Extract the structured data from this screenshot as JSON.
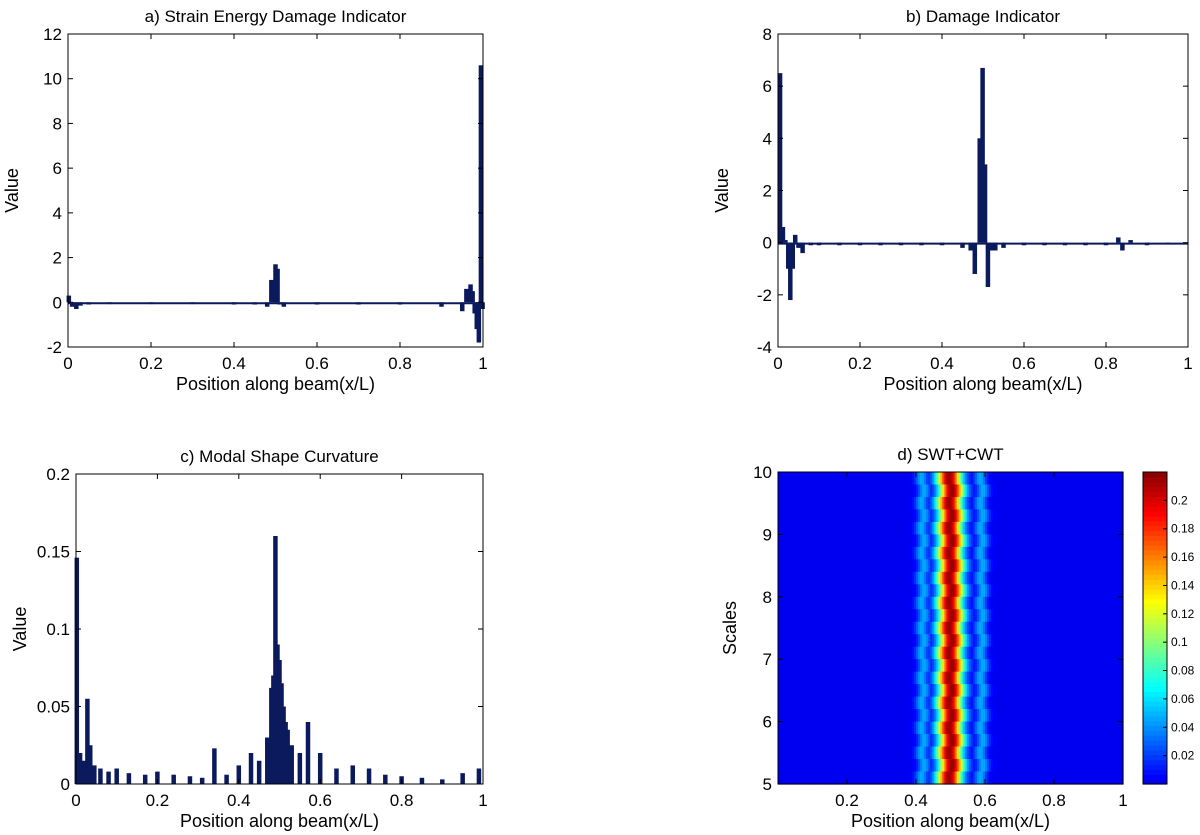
{
  "chart_data": [
    {
      "id": "a",
      "type": "bar",
      "title": "a)   Strain Energy Damage Indicator",
      "xlabel": "Position along beam(x/L)",
      "ylabel": "Value",
      "xlim": [
        0,
        1
      ],
      "ylim": [
        -2,
        12
      ],
      "xticks": [
        0,
        0.2,
        0.4,
        0.6,
        0.8,
        1
      ],
      "xtick_labels": [
        "0",
        "0.2",
        "0.4",
        "0.6",
        "0.8",
        "1"
      ],
      "yticks": [
        -2,
        0,
        2,
        4,
        6,
        8,
        10,
        12
      ],
      "ytick_labels": [
        "-2",
        "0",
        "2",
        "4",
        "6",
        "8",
        "10",
        "12"
      ],
      "bar_color": "#0b1a5c",
      "x": [
        0.002,
        0.01,
        0.02,
        0.03,
        0.05,
        0.1,
        0.2,
        0.3,
        0.4,
        0.45,
        0.48,
        0.49,
        0.5,
        0.505,
        0.51,
        0.52,
        0.6,
        0.7,
        0.8,
        0.9,
        0.95,
        0.96,
        0.97,
        0.975,
        0.98,
        0.985,
        0.99,
        0.995,
        0.999
      ],
      "values": [
        0.3,
        -0.2,
        -0.3,
        -0.15,
        -0.1,
        -0.08,
        -0.08,
        -0.08,
        -0.1,
        -0.1,
        -0.2,
        1.0,
        1.7,
        1.5,
        -0.1,
        -0.2,
        -0.1,
        -0.1,
        -0.1,
        -0.2,
        -0.4,
        0.6,
        0.8,
        0.5,
        -0.5,
        -1.2,
        -1.8,
        10.6,
        -0.3
      ]
    },
    {
      "id": "b",
      "type": "bar",
      "title": "b)   Damage Indicator",
      "xlabel": "Position along beam(x/L)",
      "ylabel": "Value",
      "xlim": [
        0,
        1
      ],
      "ylim": [
        -4,
        8
      ],
      "xticks": [
        0,
        0.2,
        0.4,
        0.6,
        0.8,
        1
      ],
      "xtick_labels": [
        "0",
        "0.2",
        "0.4",
        "0.6",
        "0.8",
        "1"
      ],
      "yticks": [
        -4,
        -2,
        0,
        2,
        4,
        6,
        8
      ],
      "ytick_labels": [
        "-4",
        "-2",
        "0",
        "2",
        "4",
        "6",
        "8"
      ],
      "bar_color": "#0b1a5c",
      "x": [
        0.005,
        0.012,
        0.018,
        0.025,
        0.03,
        0.036,
        0.042,
        0.05,
        0.06,
        0.08,
        0.1,
        0.15,
        0.2,
        0.25,
        0.3,
        0.35,
        0.4,
        0.45,
        0.47,
        0.48,
        0.492,
        0.499,
        0.505,
        0.512,
        0.52,
        0.53,
        0.55,
        0.6,
        0.65,
        0.7,
        0.75,
        0.8,
        0.83,
        0.84,
        0.86,
        0.9,
        0.95
      ],
      "values": [
        6.5,
        0.6,
        0.1,
        -1.0,
        -2.2,
        -1.0,
        0.3,
        -0.2,
        -0.4,
        -0.1,
        -0.1,
        -0.1,
        -0.1,
        -0.1,
        -0.1,
        -0.1,
        -0.1,
        -0.2,
        -0.3,
        -1.2,
        4.0,
        6.7,
        3.0,
        -1.7,
        -0.3,
        -0.3,
        -0.2,
        -0.1,
        -0.1,
        -0.1,
        -0.1,
        -0.1,
        0.2,
        -0.3,
        0.1,
        -0.1,
        -0.05
      ]
    },
    {
      "id": "c",
      "type": "bar",
      "title": "c)   Modal Shape Curvature",
      "xlabel": "Position along beam(x/L)",
      "ylabel": "Value",
      "xlim": [
        0,
        1
      ],
      "ylim": [
        0,
        0.2
      ],
      "xticks": [
        0,
        0.2,
        0.4,
        0.6,
        0.8,
        1
      ],
      "xtick_labels": [
        "0",
        "0.2",
        "0.4",
        "0.6",
        "0.8",
        "1"
      ],
      "yticks": [
        0,
        0.05,
        0.1,
        0.15,
        0.2
      ],
      "ytick_labels": [
        "0",
        "0.05",
        "0.1",
        "0.15",
        "0.2"
      ],
      "bar_color": "#0b1a5c",
      "x": [
        0.002,
        0.01,
        0.02,
        0.028,
        0.035,
        0.045,
        0.06,
        0.08,
        0.1,
        0.13,
        0.17,
        0.2,
        0.24,
        0.28,
        0.31,
        0.34,
        0.37,
        0.4,
        0.43,
        0.45,
        0.47,
        0.48,
        0.485,
        0.49,
        0.495,
        0.5,
        0.505,
        0.51,
        0.515,
        0.52,
        0.53,
        0.55,
        0.57,
        0.6,
        0.64,
        0.68,
        0.72,
        0.76,
        0.8,
        0.85,
        0.9,
        0.95,
        0.99
      ],
      "values": [
        0.146,
        0.02,
        0.015,
        0.055,
        0.025,
        0.012,
        0.01,
        0.008,
        0.01,
        0.007,
        0.006,
        0.008,
        0.006,
        0.005,
        0.004,
        0.023,
        0.006,
        0.012,
        0.02,
        0.015,
        0.03,
        0.062,
        0.07,
        0.16,
        0.09,
        0.08,
        0.065,
        0.05,
        0.04,
        0.035,
        0.025,
        0.02,
        0.04,
        0.02,
        0.01,
        0.012,
        0.01,
        0.006,
        0.005,
        0.004,
        0.003,
        0.007,
        0.01
      ]
    },
    {
      "id": "d",
      "type": "heatmap",
      "title": "d)   SWT+CWT",
      "xlabel": "Position along beam(x/L)",
      "ylabel": "Scales",
      "xlim": [
        0,
        1
      ],
      "ylim": [
        5,
        10
      ],
      "xticks": [
        0.2,
        0.4,
        0.6,
        0.8,
        1
      ],
      "xtick_labels": [
        "0.2",
        "0.4",
        "0.6",
        "0.8",
        "1"
      ],
      "yticks": [
        5,
        6,
        7,
        8,
        9,
        10
      ],
      "ytick_labels": [
        "5",
        "6",
        "7",
        "8",
        "9",
        "10"
      ],
      "colormap": "jet",
      "zlim": [
        0,
        0.22
      ],
      "colorbar_ticks": [
        0.02,
        0.04,
        0.06,
        0.08,
        0.1,
        0.12,
        0.14,
        0.16,
        0.18,
        0.2
      ],
      "colorbar_tick_labels": [
        "0.02",
        "0.04",
        "0.06",
        "0.08",
        "0.1",
        "0.12",
        "0.14",
        "0.16",
        "0.18",
        "0.2"
      ],
      "bands": [
        {
          "center": 0.5,
          "width": 0.03,
          "peak": 0.215
        },
        {
          "center": 0.42,
          "width": 0.015,
          "peak": 0.045
        },
        {
          "center": 0.59,
          "width": 0.015,
          "peak": 0.045
        }
      ]
    }
  ]
}
